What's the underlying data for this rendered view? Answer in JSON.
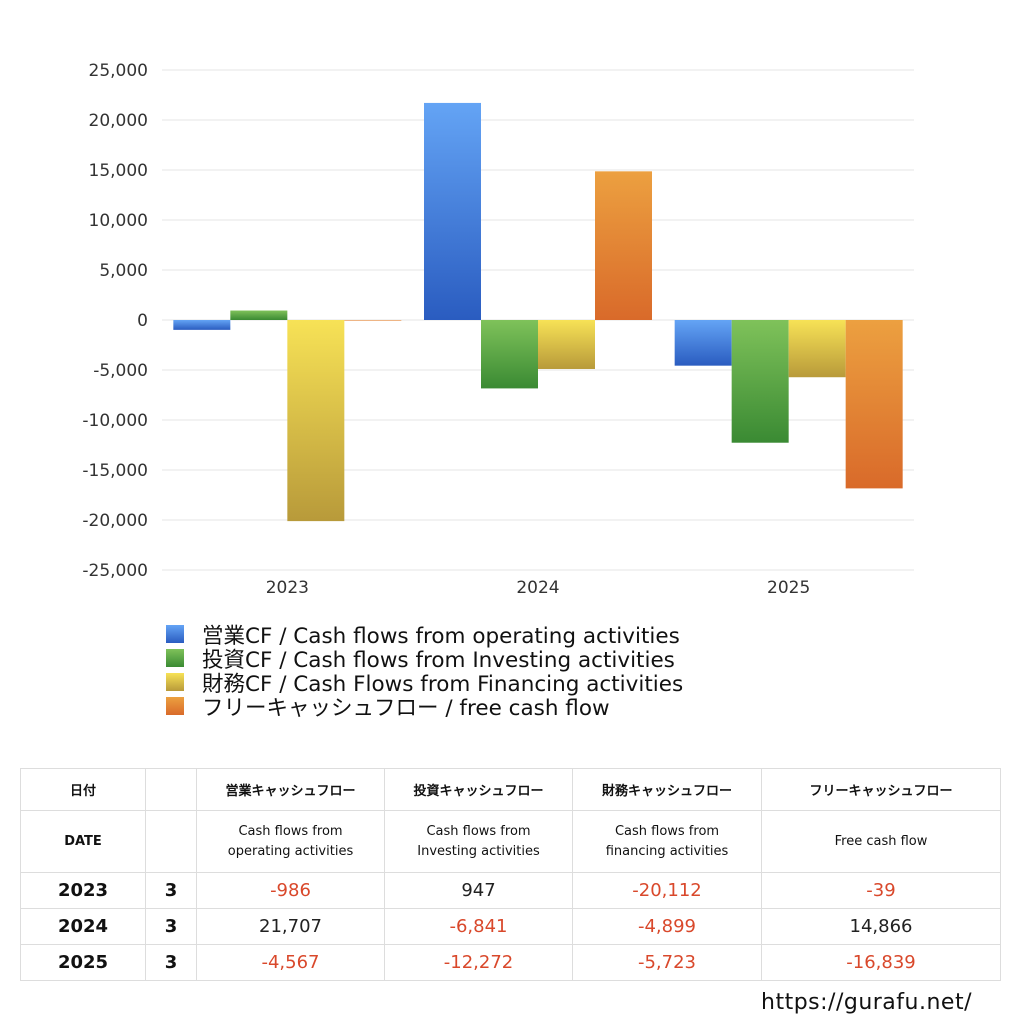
{
  "chart_data": {
    "type": "bar",
    "categories": [
      "2023",
      "2024",
      "2025"
    ],
    "series": [
      {
        "name": "営業CF / Cash flows from operating activities",
        "values": [
          -986,
          21707,
          -4567
        ],
        "color_top": "#64a4f5",
        "color_bottom": "#2a5cc0"
      },
      {
        "name": "投資CF / Cash flows from Investing activities",
        "values": [
          947,
          -6841,
          -12272
        ],
        "color_top": "#7fc25a",
        "color_bottom": "#3a8a33"
      },
      {
        "name": "財務CF / Cash Flows from Financing activities",
        "values": [
          -20112,
          -4899,
          -5723
        ],
        "color_top": "#f7e256",
        "color_bottom": "#b89a3a"
      },
      {
        "name": "フリーキャッシュフロー / free cash flow",
        "values": [
          -39,
          14866,
          -16839
        ],
        "color_top": "#eca040",
        "color_bottom": "#d96a2a"
      }
    ],
    "yticks": [
      "25,000",
      "20,000",
      "15,000",
      "10,000",
      "5,000",
      "0",
      "-5,000",
      "-10,000",
      "-15,000",
      "-20,000",
      "-25,000"
    ],
    "ylim": [
      -25000,
      25000
    ],
    "grid": true,
    "legend_position": "bottom"
  },
  "table": {
    "header_row1": [
      "日付",
      "",
      "営業キャッシュフロー",
      "投資キャッシュフロー",
      "財務キャッシュフロー",
      "フリーキャッシュフロー"
    ],
    "header_row2": [
      "DATE",
      "",
      "Cash flows from operating activities",
      "Cash flows from Investing activities",
      "Cash flows from financing activities",
      "Free cash flow"
    ],
    "rows": [
      {
        "year": "2023",
        "month": "3",
        "values": [
          "-986",
          "947",
          "-20,112",
          "-39"
        ]
      },
      {
        "year": "2024",
        "month": "3",
        "values": [
          "21,707",
          "-6,841",
          "-4,899",
          "14,866"
        ]
      },
      {
        "year": "2025",
        "month": "3",
        "values": [
          "-4,567",
          "-12,272",
          "-5,723",
          "-16,839"
        ]
      }
    ]
  },
  "footer": {
    "url": "https://gurafu.net/"
  },
  "colors": {
    "negative": "#d9482b",
    "grid": "#e6e6e6"
  }
}
